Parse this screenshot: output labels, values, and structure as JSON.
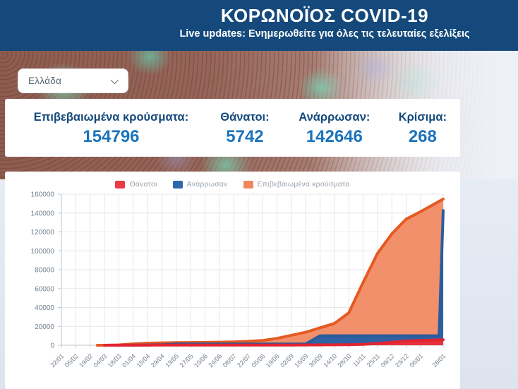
{
  "header": {
    "title": "ΚΟΡΩΝΟΪΟΣ COVID-19",
    "subtitle": "Live updates: Ενημερωθείτε για όλες τις τελευταίες εξελίξεις",
    "background_color": "#15497c"
  },
  "country_selector": {
    "selected": "Ελλάδα",
    "icon": "chevron-down-icon"
  },
  "stats": {
    "label_color": "#15497c",
    "value_color": "#1c73bb",
    "items": [
      {
        "label": "Επιβεβαιωμένα κρούσματα:",
        "value": "154796"
      },
      {
        "label": "Θάνατοι:",
        "value": "5742"
      },
      {
        "label": "Ανάρρωσαν:",
        "value": "142646"
      },
      {
        "label": "Κρίσιμα:",
        "value": "268"
      }
    ]
  },
  "chart_data": {
    "type": "area",
    "title": "",
    "xlabel": "",
    "ylabel": "",
    "ylim": [
      0,
      160000
    ],
    "ytick_step": 20000,
    "grid": true,
    "legend_position": "top",
    "x_ticks": [
      {
        "day": 0,
        "label": "22/01"
      },
      {
        "day": 14,
        "label": "05/02"
      },
      {
        "day": 28,
        "label": "19/02"
      },
      {
        "day": 42,
        "label": "04/03"
      },
      {
        "day": 56,
        "label": "18/03"
      },
      {
        "day": 70,
        "label": "01/04"
      },
      {
        "day": 84,
        "label": "15/04"
      },
      {
        "day": 98,
        "label": "29/04"
      },
      {
        "day": 112,
        "label": "13/05"
      },
      {
        "day": 126,
        "label": "27/05"
      },
      {
        "day": 140,
        "label": "10/06"
      },
      {
        "day": 154,
        "label": "24/06"
      },
      {
        "day": 168,
        "label": "08/07"
      },
      {
        "day": 182,
        "label": "22/07"
      },
      {
        "day": 196,
        "label": "05/08"
      },
      {
        "day": 210,
        "label": "19/08"
      },
      {
        "day": 224,
        "label": "02/09"
      },
      {
        "day": 238,
        "label": "16/09"
      },
      {
        "day": 252,
        "label": "30/09"
      },
      {
        "day": 266,
        "label": "14/10"
      },
      {
        "day": 280,
        "label": "28/10"
      },
      {
        "day": 294,
        "label": "11/11"
      },
      {
        "day": 308,
        "label": "25/11"
      },
      {
        "day": 322,
        "label": "09/12"
      },
      {
        "day": 336,
        "label": "23/12"
      },
      {
        "day": 350,
        "label": "06/01"
      },
      {
        "day": 372,
        "label": "28/01"
      }
    ],
    "series": [
      {
        "name": "Θάνατοι",
        "legend": "#EA3B46",
        "color": "#E02431",
        "fill": "#E8313C",
        "points": [
          [
            42,
            0
          ],
          [
            56,
            5
          ],
          [
            70,
            50
          ],
          [
            84,
            102
          ],
          [
            98,
            146
          ],
          [
            112,
            166
          ],
          [
            126,
            173
          ],
          [
            140,
            183
          ],
          [
            154,
            190
          ],
          [
            168,
            193
          ],
          [
            182,
            201
          ],
          [
            196,
            210
          ],
          [
            210,
            228
          ],
          [
            224,
            261
          ],
          [
            238,
            315
          ],
          [
            252,
            391
          ],
          [
            266,
            462
          ],
          [
            280,
            603
          ],
          [
            294,
            959
          ],
          [
            308,
            1902
          ],
          [
            322,
            3194
          ],
          [
            336,
            4457
          ],
          [
            350,
            5051
          ],
          [
            372,
            5742
          ]
        ]
      },
      {
        "name": "Ανάρρωσαν",
        "legend": "#2E68AC",
        "color": "#2A5C9C",
        "fill": "#2E62A4",
        "points": [
          [
            56,
            8
          ],
          [
            70,
            52
          ],
          [
            84,
            269
          ],
          [
            98,
            577
          ],
          [
            112,
            1374
          ],
          [
            238,
            1374
          ],
          [
            252,
            9989
          ],
          [
            368,
            9989
          ],
          [
            372,
            142646
          ]
        ]
      },
      {
        "name": "Επιβεβαιωμένα κρούσματα",
        "legend": "#F0875C",
        "color": "#E55A22",
        "fill": "#F2906B",
        "points": [
          [
            35,
            3
          ],
          [
            42,
            9
          ],
          [
            56,
            387
          ],
          [
            70,
            1415
          ],
          [
            84,
            2192
          ],
          [
            98,
            2576
          ],
          [
            112,
            2760
          ],
          [
            126,
            2892
          ],
          [
            140,
            3049
          ],
          [
            154,
            3287
          ],
          [
            168,
            3622
          ],
          [
            182,
            4077
          ],
          [
            196,
            4974
          ],
          [
            210,
            7222
          ],
          [
            224,
            10524
          ],
          [
            238,
            13730
          ],
          [
            252,
            18475
          ],
          [
            266,
            23060
          ],
          [
            280,
            34299
          ],
          [
            294,
            66637
          ],
          [
            308,
            97288
          ],
          [
            322,
            118045
          ],
          [
            336,
            133589
          ],
          [
            350,
            141453
          ],
          [
            372,
            154796
          ]
        ]
      }
    ]
  }
}
